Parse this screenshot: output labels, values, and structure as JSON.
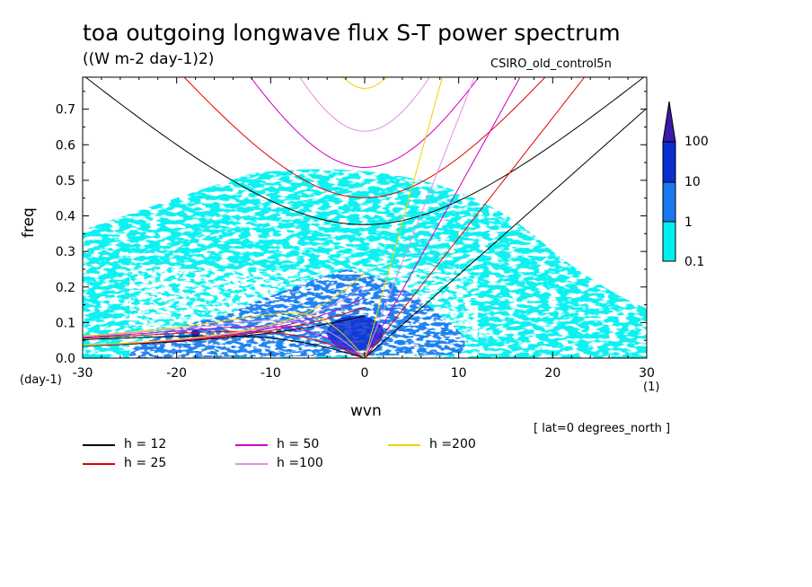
{
  "header": {
    "title": "toa outgoing longwave flux S-T power spectrum",
    "subtitle": "((W m-2 day-1)2)",
    "dataset": "CSIRO_old_control5n",
    "region": "[ lat=0 degrees_north ]"
  },
  "chart_data": {
    "type": "heatmap",
    "title": "toa outgoing longwave flux S-T power spectrum",
    "units": "((W m-2 day-1)2)",
    "xlabel": "wvn",
    "xunit": "(1)",
    "ylabel": "freq",
    "yunit": "(day-1)",
    "xlim": [
      -30,
      30
    ],
    "ylim": [
      0,
      0.79
    ],
    "xticks": [
      -30,
      -20,
      -10,
      0,
      10,
      20,
      30
    ],
    "xtick_labels": [
      "-30",
      "-20",
      "-10",
      "0",
      "10",
      "20",
      "30"
    ],
    "yticks": [
      0.0,
      0.1,
      0.2,
      0.3,
      0.4,
      0.5,
      0.6,
      0.7
    ],
    "ytick_labels": [
      "0.0",
      "0.1",
      "0.2",
      "0.3",
      "0.4",
      "0.5",
      "0.6",
      "0.7"
    ],
    "colorbar": {
      "levels": [
        "0.1",
        "1",
        "10",
        "100"
      ],
      "colors": [
        "#00f0f0",
        "#1a78f0",
        "#0a2fd0",
        "#3a1aa8"
      ]
    },
    "shaded_regions": [
      {
        "name": "power 0.1-1",
        "level": "0.1",
        "x": [
          -30,
          30
        ],
        "y": [
          0,
          0.55
        ]
      },
      {
        "name": "power 1-10",
        "level": "1",
        "x": [
          -25,
          12
        ],
        "y": [
          0,
          0.25
        ]
      },
      {
        "name": "power 10-100",
        "level": "10",
        "x": [
          -4,
          2
        ],
        "y": [
          0.02,
          0.12
        ]
      }
    ],
    "dispersion_curves": [
      {
        "h": 12,
        "label": "h = 12",
        "color": "#000000"
      },
      {
        "h": 25,
        "label": "h = 25",
        "color": "#e00000"
      },
      {
        "h": 50,
        "label": "h = 50",
        "color": "#d000c0"
      },
      {
        "h": 100,
        "label": "h =100",
        "color": "#e090e0"
      },
      {
        "h": 200,
        "label": "h =200",
        "color": "#f0d000"
      }
    ]
  },
  "legend": [
    {
      "label": "h = 12",
      "color": "#000000"
    },
    {
      "label": "h = 25",
      "color": "#e00000"
    },
    {
      "label": "h = 50",
      "color": "#d000c0"
    },
    {
      "label": "h =100",
      "color": "#e090e0"
    },
    {
      "label": "h =200",
      "color": "#f0d000"
    }
  ]
}
